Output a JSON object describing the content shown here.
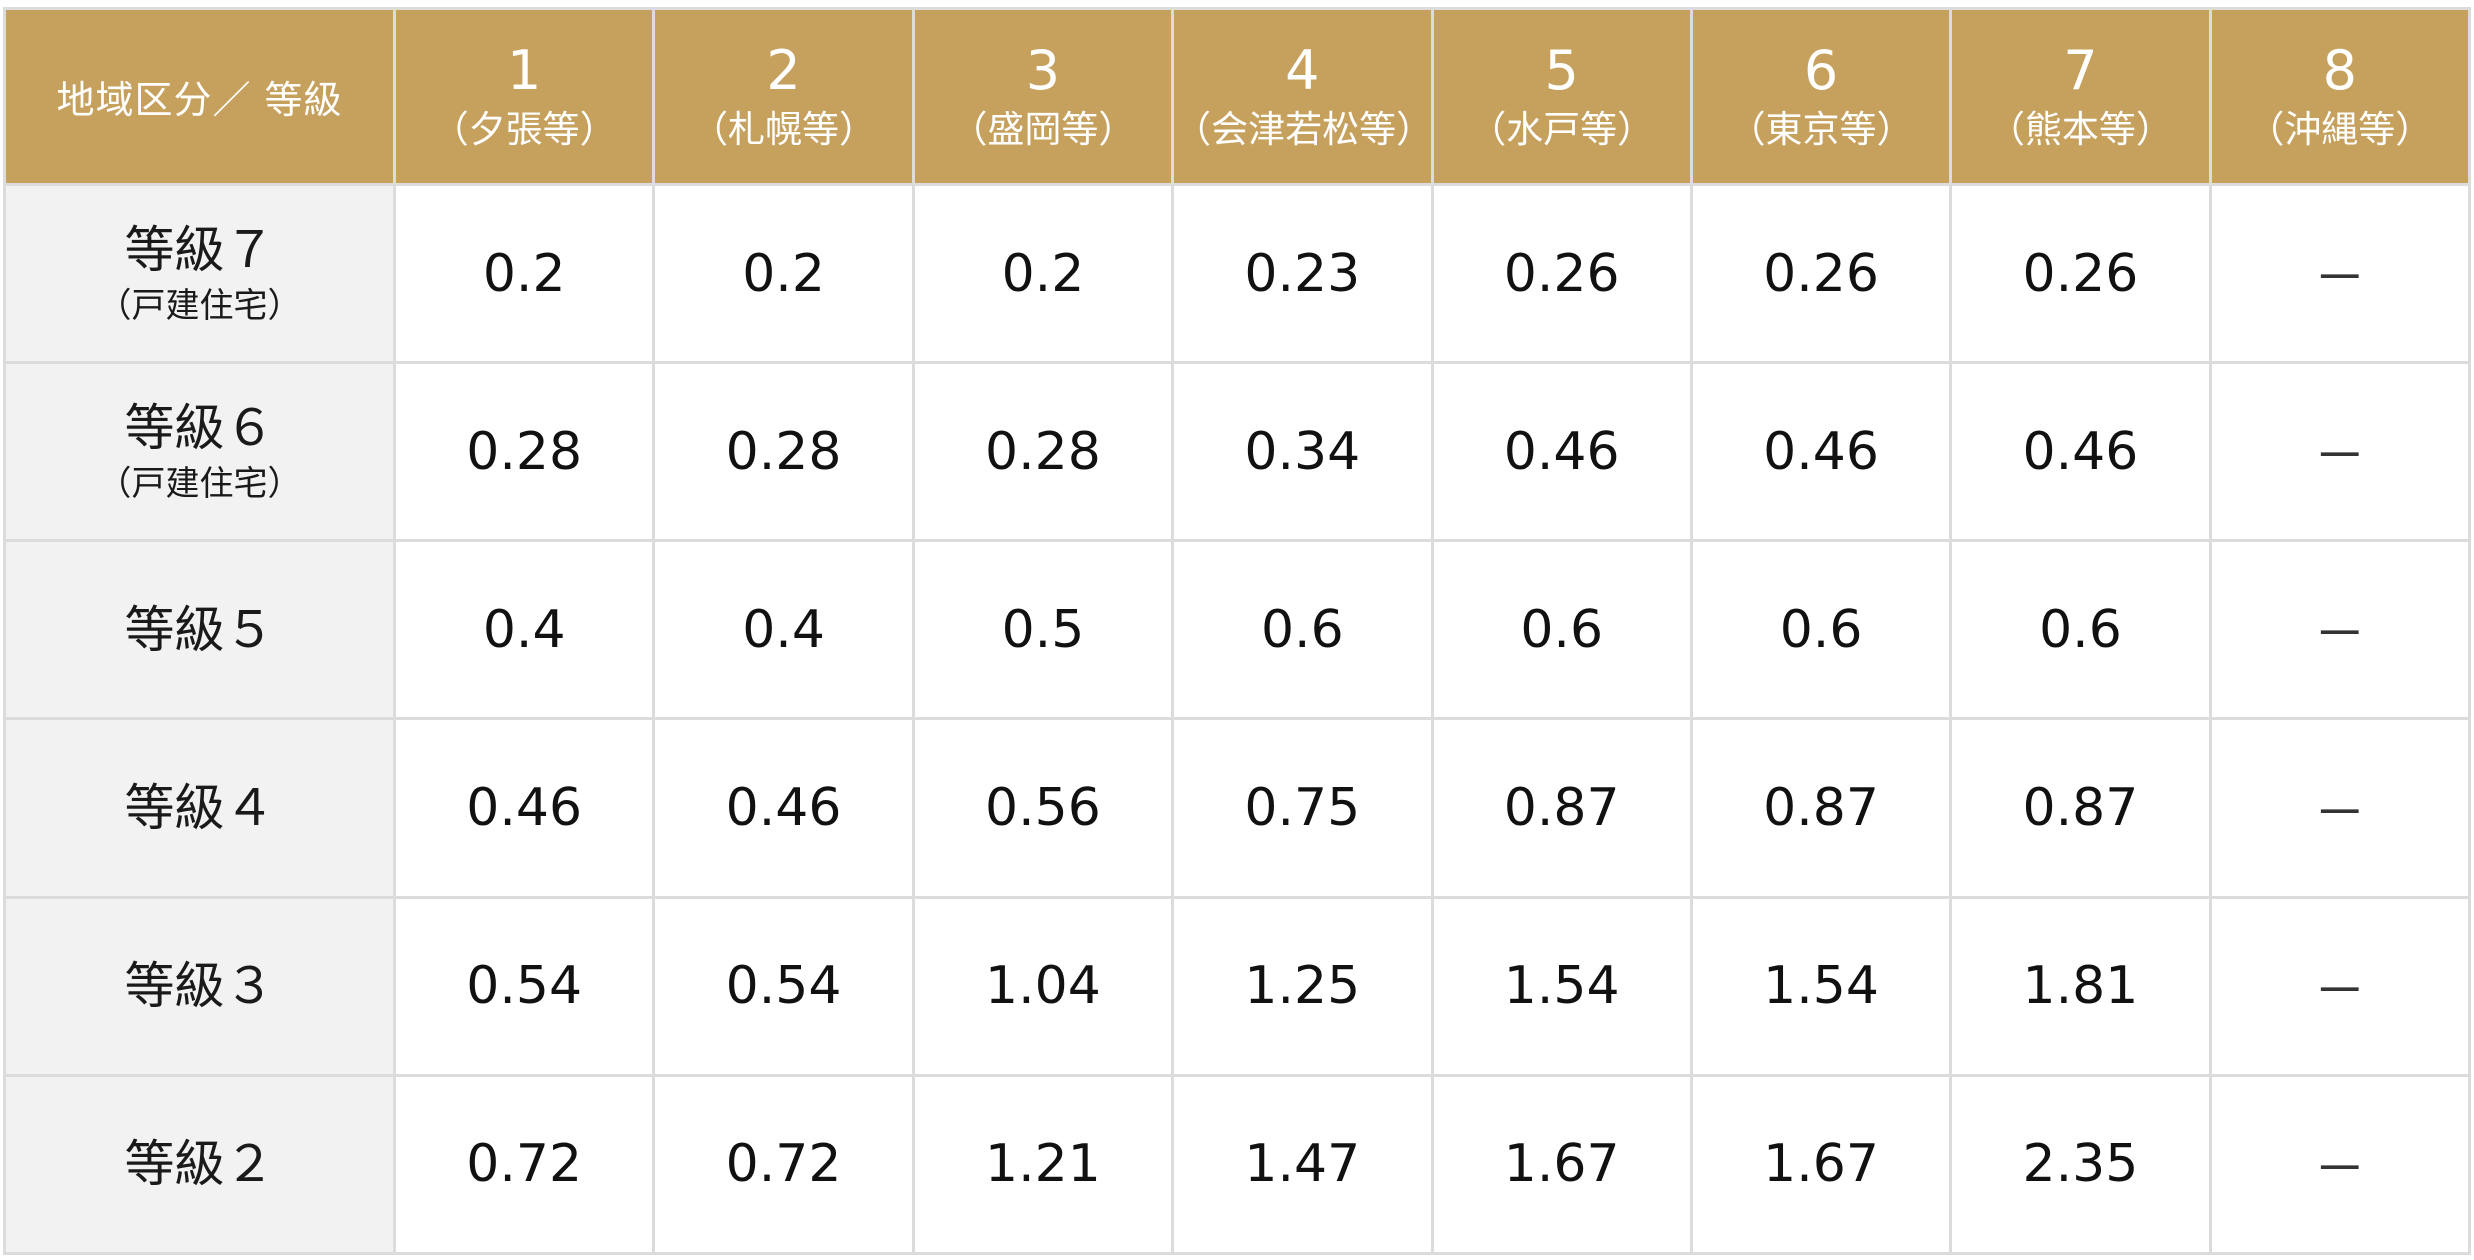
{
  "table": {
    "corner_label": "地域区分／ 等級",
    "zones": [
      {
        "num": "1",
        "city": "（夕張等）"
      },
      {
        "num": "2",
        "city": "（札幌等）"
      },
      {
        "num": "3",
        "city": "（盛岡等）"
      },
      {
        "num": "4",
        "city": "（会津若松等）"
      },
      {
        "num": "5",
        "city": "（水戸等）"
      },
      {
        "num": "6",
        "city": "（東京等）"
      },
      {
        "num": "7",
        "city": "（熊本等）"
      },
      {
        "num": "8",
        "city": "（沖縄等）"
      }
    ],
    "rows": [
      {
        "grade": "等級７",
        "note": "（戸建住宅）",
        "values": [
          "0.2",
          "0.2",
          "0.2",
          "0.23",
          "0.26",
          "0.26",
          "0.26",
          "－"
        ]
      },
      {
        "grade": "等級６",
        "note": "（戸建住宅）",
        "values": [
          "0.28",
          "0.28",
          "0.28",
          "0.34",
          "0.46",
          "0.46",
          "0.46",
          "－"
        ]
      },
      {
        "grade": "等級５",
        "note": "",
        "values": [
          "0.4",
          "0.4",
          "0.5",
          "0.6",
          "0.6",
          "0.6",
          "0.6",
          "－"
        ]
      },
      {
        "grade": "等級４",
        "note": "",
        "values": [
          "0.46",
          "0.46",
          "0.56",
          "0.75",
          "0.87",
          "0.87",
          "0.87",
          "－"
        ]
      },
      {
        "grade": "等級３",
        "note": "",
        "values": [
          "0.54",
          "0.54",
          "1.04",
          "1.25",
          "1.54",
          "1.54",
          "1.81",
          "－"
        ]
      },
      {
        "grade": "等級２",
        "note": "",
        "values": [
          "0.72",
          "0.72",
          "1.21",
          "1.47",
          "1.67",
          "1.67",
          "2.35",
          "－"
        ]
      }
    ]
  }
}
